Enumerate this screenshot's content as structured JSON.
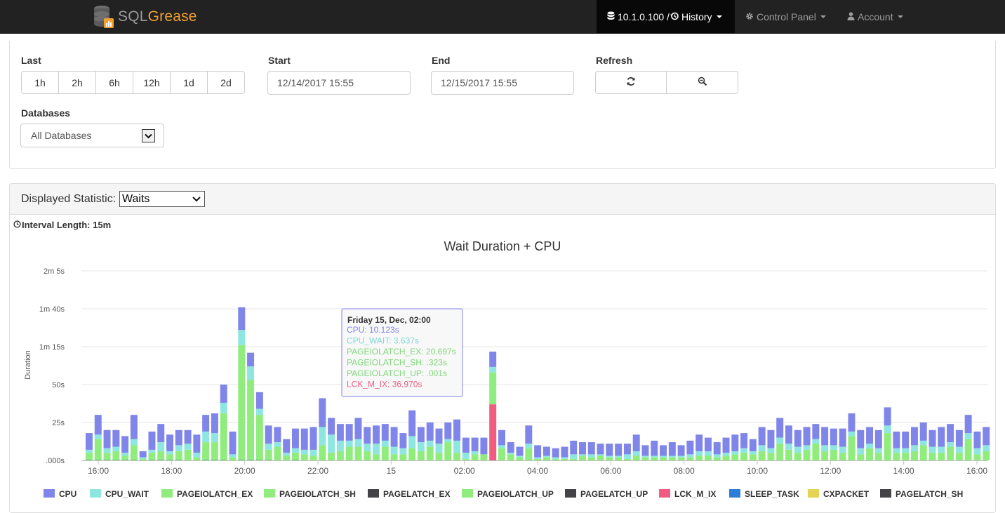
{
  "navbar": {
    "brand_left": "SQL",
    "brand_right": "Grease",
    "server_history": "10.1.0.100 / ",
    "history_label": "History",
    "control_panel": "Control Panel",
    "account": "Account"
  },
  "filters": {
    "last_label": "Last",
    "last_options": [
      "1h",
      "2h",
      "6h",
      "12h",
      "1d",
      "2d"
    ],
    "start_label": "Start",
    "start_value": "12/14/2017 15:55",
    "end_label": "End",
    "end_value": "12/15/2017 15:55",
    "refresh_label": "Refresh",
    "databases_label": "Databases",
    "databases_value": "All Databases"
  },
  "stats": {
    "displayed_label": "Displayed Statistic:",
    "displayed_value": "Waits",
    "interval_label": "Interval Length: 15m"
  },
  "chart_data": {
    "type": "bar",
    "stacked": true,
    "title": "Wait Duration + CPU",
    "ylabel": "Duration",
    "yticks": [
      ".000s",
      "25s",
      "50s",
      "1m 15s",
      "1m 40s",
      "2m 5s"
    ],
    "ylim": [
      0,
      125
    ],
    "xticks": [
      "16:00",
      "18:00",
      "20:00",
      "22:00",
      "15",
      "02:00",
      "04:00",
      "06:00",
      "08:00",
      "10:00",
      "12:00",
      "14:00",
      "16:00"
    ],
    "series_colors": {
      "CPU": "#8085e9",
      "CPU_WAIT": "#8ee6e0",
      "PAGEIOLATCH_EX": "#90ed7d",
      "PAGEIOLATCH_SH": "#7ee07a",
      "PAGEIOLATCH_UP": "#a0f080",
      "LCK_M_IX": "#f15c80"
    },
    "bars": [
      {
        "cpu": 11,
        "wait": 2,
        "ex": 4,
        "sh": 1
      },
      {
        "cpu": 13,
        "wait": 3,
        "ex": 13,
        "sh": 1
      },
      {
        "cpu": 12,
        "wait": 3,
        "ex": 4,
        "sh": 1
      },
      {
        "cpu": 11,
        "wait": 3,
        "ex": 5,
        "sh": 1
      },
      {
        "cpu": 11,
        "wait": 2,
        "ex": 2,
        "sh": 1
      },
      {
        "cpu": 16,
        "wait": 4,
        "ex": 9,
        "sh": 1
      },
      {
        "cpu": 4,
        "wait": 1,
        "ex": 1,
        "sh": 0
      },
      {
        "cpu": 12,
        "wait": 2,
        "ex": 4,
        "sh": 1
      },
      {
        "cpu": 12,
        "wait": 6,
        "ex": 5,
        "sh": 1
      },
      {
        "cpu": 11,
        "wait": 2,
        "ex": 3,
        "sh": 1
      },
      {
        "cpu": 10,
        "wait": 4,
        "ex": 5,
        "sh": 1
      },
      {
        "cpu": 9,
        "wait": 4,
        "ex": 7,
        "sh": 0
      },
      {
        "cpu": 12,
        "wait": 3,
        "ex": 2,
        "sh": 0
      },
      {
        "cpu": 11,
        "wait": 7,
        "ex": 11,
        "sh": 1
      },
      {
        "cpu": 13,
        "wait": 6,
        "ex": 11,
        "sh": 1
      },
      {
        "cpu": 12,
        "wait": 7,
        "ex": 30,
        "sh": 1
      },
      {
        "cpu": 15,
        "wait": 2,
        "ex": 2,
        "sh": 0
      },
      {
        "cpu": 15,
        "wait": 10,
        "ex": 75,
        "sh": 1
      },
      {
        "cpu": 9,
        "wait": 9,
        "ex": 52,
        "sh": 1
      },
      {
        "cpu": 11,
        "wait": 4,
        "ex": 29,
        "sh": 1
      },
      {
        "cpu": 12,
        "wait": 4,
        "ex": 6,
        "sh": 1
      },
      {
        "cpu": 10,
        "wait": 3,
        "ex": 9,
        "sh": 0
      },
      {
        "cpu": 9,
        "wait": 2,
        "ex": 3,
        "sh": 0
      },
      {
        "cpu": 13,
        "wait": 3,
        "ex": 4,
        "sh": 1
      },
      {
        "cpu": 14,
        "wait": 3,
        "ex": 4,
        "sh": 0
      },
      {
        "cpu": 15,
        "wait": 4,
        "ex": 3,
        "sh": 0
      },
      {
        "cpu": 19,
        "wait": 12,
        "ex": 10,
        "sh": 0
      },
      {
        "cpu": 11,
        "wait": 12,
        "ex": 5,
        "sh": 0
      },
      {
        "cpu": 11,
        "wait": 7,
        "ex": 6,
        "sh": 0
      },
      {
        "cpu": 11,
        "wait": 4,
        "ex": 9,
        "sh": 0
      },
      {
        "cpu": 14,
        "wait": 5,
        "ex": 9,
        "sh": 0
      },
      {
        "cpu": 11,
        "wait": 5,
        "ex": 6,
        "sh": 0
      },
      {
        "cpu": 12,
        "wait": 7,
        "ex": 4,
        "sh": 0
      },
      {
        "cpu": 11,
        "wait": 4,
        "ex": 9,
        "sh": 0
      },
      {
        "cpu": 13,
        "wait": 5,
        "ex": 4,
        "sh": 0
      },
      {
        "cpu": 10,
        "wait": 4,
        "ex": 4,
        "sh": 0
      },
      {
        "cpu": 17,
        "wait": 8,
        "ex": 8,
        "sh": 0
      },
      {
        "cpu": 10,
        "wait": 6,
        "ex": 6,
        "sh": 0
      },
      {
        "cpu": 12,
        "wait": 4,
        "ex": 9,
        "sh": 0
      },
      {
        "cpu": 10,
        "wait": 6,
        "ex": 5,
        "sh": 0
      },
      {
        "cpu": 11,
        "wait": 2,
        "ex": 12,
        "sh": 0
      },
      {
        "cpu": 14,
        "wait": 8,
        "ex": 5,
        "sh": 0
      },
      {
        "cpu": 10,
        "wait": 4,
        "ex": 1,
        "sh": 0
      },
      {
        "cpu": 9,
        "wait": 2,
        "ex": 4,
        "sh": 0
      },
      {
        "cpu": 11,
        "wait": 0,
        "ex": 4,
        "sh": 0
      },
      {
        "cpu": 10.123,
        "wait": 3.637,
        "ex": 20.697,
        "sh": 0.323,
        "lck": 36.97
      },
      {
        "cpu": 10,
        "wait": 2,
        "ex": 8,
        "sh": 0
      },
      {
        "cpu": 7,
        "wait": 1,
        "ex": 4,
        "sh": 0
      },
      {
        "cpu": 6,
        "wait": 1,
        "ex": 2,
        "sh": 0
      },
      {
        "cpu": 12,
        "wait": 3,
        "ex": 8,
        "sh": 0
      },
      {
        "cpu": 8,
        "wait": 1,
        "ex": 1,
        "sh": 0
      },
      {
        "cpu": 6,
        "wait": 1,
        "ex": 2,
        "sh": 0
      },
      {
        "cpu": 6,
        "wait": 1,
        "ex": 1,
        "sh": 0
      },
      {
        "cpu": 7,
        "wait": 1,
        "ex": 1,
        "sh": 0
      },
      {
        "cpu": 9,
        "wait": 3,
        "ex": 1,
        "sh": 0
      },
      {
        "cpu": 8,
        "wait": 1,
        "ex": 3,
        "sh": 0
      },
      {
        "cpu": 8,
        "wait": 2,
        "ex": 2,
        "sh": 0
      },
      {
        "cpu": 7,
        "wait": 1,
        "ex": 3,
        "sh": 0
      },
      {
        "cpu": 8,
        "wait": 1,
        "ex": 2,
        "sh": 0
      },
      {
        "cpu": 8,
        "wait": 1,
        "ex": 2,
        "sh": 0
      },
      {
        "cpu": 7,
        "wait": 3,
        "ex": 1,
        "sh": 0
      },
      {
        "cpu": 11,
        "wait": 3,
        "ex": 3,
        "sh": 0
      },
      {
        "cpu": 7,
        "wait": 1,
        "ex": 2,
        "sh": 0
      },
      {
        "cpu": 10,
        "wait": 1,
        "ex": 2,
        "sh": 0
      },
      {
        "cpu": 7,
        "wait": 1,
        "ex": 2,
        "sh": 0
      },
      {
        "cpu": 9,
        "wait": 1,
        "ex": 2,
        "sh": 0
      },
      {
        "cpu": 7,
        "wait": 1,
        "ex": 2,
        "sh": 0
      },
      {
        "cpu": 9,
        "wait": 2,
        "ex": 2,
        "sh": 0
      },
      {
        "cpu": 11,
        "wait": 3,
        "ex": 3,
        "sh": 0
      },
      {
        "cpu": 9,
        "wait": 3,
        "ex": 3,
        "sh": 0
      },
      {
        "cpu": 8,
        "wait": 2,
        "ex": 2,
        "sh": 0
      },
      {
        "cpu": 10,
        "wait": 2,
        "ex": 3,
        "sh": 0
      },
      {
        "cpu": 11,
        "wait": 2,
        "ex": 4,
        "sh": 0
      },
      {
        "cpu": 10,
        "wait": 3,
        "ex": 5,
        "sh": 0
      },
      {
        "cpu": 8,
        "wait": 2,
        "ex": 4,
        "sh": 0
      },
      {
        "cpu": 12,
        "wait": 4,
        "ex": 6,
        "sh": 0
      },
      {
        "cpu": 12,
        "wait": 3,
        "ex": 5,
        "sh": 0
      },
      {
        "cpu": 13,
        "wait": 4,
        "ex": 11,
        "sh": 0
      },
      {
        "cpu": 12,
        "wait": 4,
        "ex": 7,
        "sh": 0
      },
      {
        "cpu": 11,
        "wait": 4,
        "ex": 5,
        "sh": 0
      },
      {
        "cpu": 12,
        "wait": 3,
        "ex": 7,
        "sh": 0
      },
      {
        "cpu": 10,
        "wait": 3,
        "ex": 11,
        "sh": 0
      },
      {
        "cpu": 12,
        "wait": 4,
        "ex": 6,
        "sh": 0
      },
      {
        "cpu": 11,
        "wait": 3,
        "ex": 7,
        "sh": 0
      },
      {
        "cpu": 12,
        "wait": 4,
        "ex": 5,
        "sh": 0
      },
      {
        "cpu": 12,
        "wait": 3,
        "ex": 16,
        "sh": 0
      },
      {
        "cpu": 12,
        "wait": 4,
        "ex": 4,
        "sh": 0
      },
      {
        "cpu": 11,
        "wait": 3,
        "ex": 8,
        "sh": 0
      },
      {
        "cpu": 12,
        "wait": 3,
        "ex": 5,
        "sh": 0
      },
      {
        "cpu": 12,
        "wait": 5,
        "ex": 18,
        "sh": 0
      },
      {
        "cpu": 11,
        "wait": 3,
        "ex": 5,
        "sh": 0
      },
      {
        "cpu": 11,
        "wait": 3,
        "ex": 5,
        "sh": 0
      },
      {
        "cpu": 12,
        "wait": 4,
        "ex": 6,
        "sh": 0
      },
      {
        "cpu": 12,
        "wait": 3,
        "ex": 10,
        "sh": 0
      },
      {
        "cpu": 11,
        "wait": 4,
        "ex": 5,
        "sh": 0
      },
      {
        "cpu": 13,
        "wait": 4,
        "ex": 5,
        "sh": 0
      },
      {
        "cpu": 12,
        "wait": 3,
        "ex": 9,
        "sh": 0
      },
      {
        "cpu": 11,
        "wait": 4,
        "ex": 5,
        "sh": 0
      },
      {
        "cpu": 12,
        "wait": 4,
        "ex": 14,
        "sh": 0
      },
      {
        "cpu": 11,
        "wait": 4,
        "ex": 4,
        "sh": 0
      },
      {
        "cpu": 12,
        "wait": 4,
        "ex": 6,
        "sh": 0
      }
    ],
    "tooltip": {
      "title": "Friday 15, Dec, 02:00",
      "lines": [
        {
          "text": "CPU: 10.123s",
          "color": "#8085e9"
        },
        {
          "text": "CPU_WAIT: 3.637s",
          "color": "#7fd8d8"
        },
        {
          "text": "PAGEIOLATCH_EX: 20.697s",
          "color": "#7fd87a"
        },
        {
          "text": "PAGEIOLATCH_SH: .323s",
          "color": "#7fd87a"
        },
        {
          "text": "PAGEIOLATCH_UP: .001s",
          "color": "#7fd87a"
        },
        {
          "text": "LCK_M_IX: 36.970s",
          "color": "#f15c80"
        }
      ]
    },
    "legend": [
      {
        "name": "CPU",
        "color": "#8085e9"
      },
      {
        "name": "CPU_WAIT",
        "color": "#8ee6e0"
      },
      {
        "name": "PAGEIOLATCH_EX",
        "color": "#90ed7d"
      },
      {
        "name": "PAGEIOLATCH_SH",
        "color": "#90ed7d"
      },
      {
        "name": "PAGELATCH_EX",
        "color": "#434348"
      },
      {
        "name": "PAGEIOLATCH_UP",
        "color": "#90ed7d"
      },
      {
        "name": "PAGELATCH_UP",
        "color": "#434348"
      },
      {
        "name": "LCK_M_IX",
        "color": "#f15c80"
      },
      {
        "name": "SLEEP_TASK",
        "color": "#2b7fd8"
      },
      {
        "name": "CXPACKET",
        "color": "#e4d354"
      },
      {
        "name": "PAGELATCH_SH",
        "color": "#434348"
      }
    ]
  }
}
